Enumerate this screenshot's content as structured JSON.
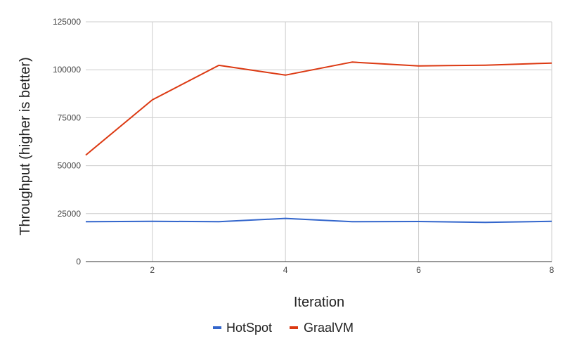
{
  "chart_data": {
    "type": "line",
    "title": "",
    "xlabel": "Iteration",
    "ylabel": "Throughput (higher is better)",
    "x": [
      1,
      2,
      3,
      4,
      5,
      6,
      7,
      8
    ],
    "xlim": [
      1,
      8
    ],
    "ylim": [
      0,
      125000
    ],
    "xticks": [
      "2",
      "4",
      "6",
      "8"
    ],
    "yticks": [
      "0",
      "25000",
      "50000",
      "75000",
      "100000",
      "125000"
    ],
    "grid": true,
    "legend_position": "bottom",
    "series": [
      {
        "name": "HotSpot",
        "color": "#3366cc",
        "values": [
          20800,
          21000,
          20800,
          22500,
          20800,
          20900,
          20400,
          21000
        ]
      },
      {
        "name": "GraalVM",
        "color": "#dc3912",
        "values": [
          55500,
          84300,
          102300,
          97200,
          104000,
          102000,
          102400,
          103500
        ]
      }
    ]
  }
}
